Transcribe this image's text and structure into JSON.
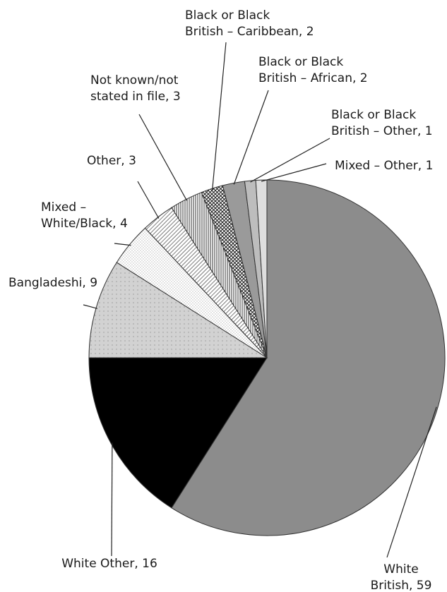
{
  "chart_data": {
    "type": "pie",
    "title": "",
    "start_angle_deg": 0,
    "direction": "clockwise",
    "slices": [
      {
        "label_lines": [
          "White",
          "British, 59"
        ],
        "category": "White British",
        "value": 59,
        "fill": "#8c8c8c",
        "pattern": "solid"
      },
      {
        "label_lines": [
          "White Other, 16"
        ],
        "category": "White Other",
        "value": 16,
        "fill": "#000000",
        "pattern": "solid"
      },
      {
        "label_lines": [
          "Bangladeshi, 9"
        ],
        "category": "Bangladeshi",
        "value": 9,
        "fill": "#cfcfcf",
        "pattern": "gradient-grey"
      },
      {
        "label_lines": [
          "Mixed –",
          "White/Black, 4"
        ],
        "category": "Mixed – White/Black",
        "value": 4,
        "fill": "#ffffff",
        "pattern": "dots"
      },
      {
        "label_lines": [
          "Other, 3"
        ],
        "category": "Other",
        "value": 3,
        "fill": "#ffffff",
        "pattern": "diagonal-dense"
      },
      {
        "label_lines": [
          "Not known/not",
          "stated in file, 3"
        ],
        "category": "Not known/not stated in file",
        "value": 3,
        "fill": "#ffffff",
        "pattern": "vertical-lines"
      },
      {
        "label_lines": [
          "Black or Black",
          "British – Caribbean, 2"
        ],
        "category": "Black or Black British – Caribbean",
        "value": 2,
        "fill": "#ffffff",
        "pattern": "crosshatch"
      },
      {
        "label_lines": [
          "Black or Black",
          "British – African, 2"
        ],
        "category": "Black or Black British – African",
        "value": 2,
        "fill": "#9a9a9a",
        "pattern": "solid"
      },
      {
        "label_lines": [
          "Black or Black",
          "British – Other, 1"
        ],
        "category": "Black or Black British – Other",
        "value": 1,
        "fill": "#bdbdbd",
        "pattern": "solid"
      },
      {
        "label_lines": [
          "Mixed – Other, 1"
        ],
        "category": "Mixed – Other",
        "value": 1,
        "fill": "#dedede",
        "pattern": "solid"
      }
    ]
  }
}
